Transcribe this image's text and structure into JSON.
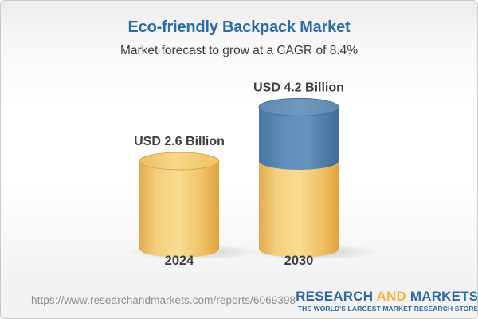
{
  "header": {
    "title": "Eco-friendly Backpack Market",
    "subtitle": "Market forecast to grow at a CAGR of 8.4%"
  },
  "chart_data": {
    "type": "bar",
    "variant": "3d-cylinder-stacked",
    "categories": [
      "2024",
      "2030"
    ],
    "values": [
      2.6,
      4.2
    ],
    "value_labels": [
      "USD 2.6 Billion",
      "USD 4.2 Billion"
    ],
    "unit": "USD Billion",
    "cagr_pct": 8.4,
    "axes": "none",
    "legend": "none",
    "colors": {
      "base_segment": "#F3CE7C",
      "base_segment_edge": "#E2A743",
      "growth_segment": "#5E8CB6",
      "growth_segment_edge": "#406D98",
      "label_text": "#3E3E3E",
      "title_blue": "#2A6CA6"
    }
  },
  "footer": {
    "url": "https://www.researchandmarkets.com/reports/6069398",
    "logo": {
      "word1": "RESEARCH",
      "word2": "AND",
      "word3": "MARKETS",
      "tagline": "THE WORLD'S LARGEST MARKET RESEARCH STORE",
      "blue": "#2B6AA3",
      "gold": "#F1B63B"
    }
  }
}
